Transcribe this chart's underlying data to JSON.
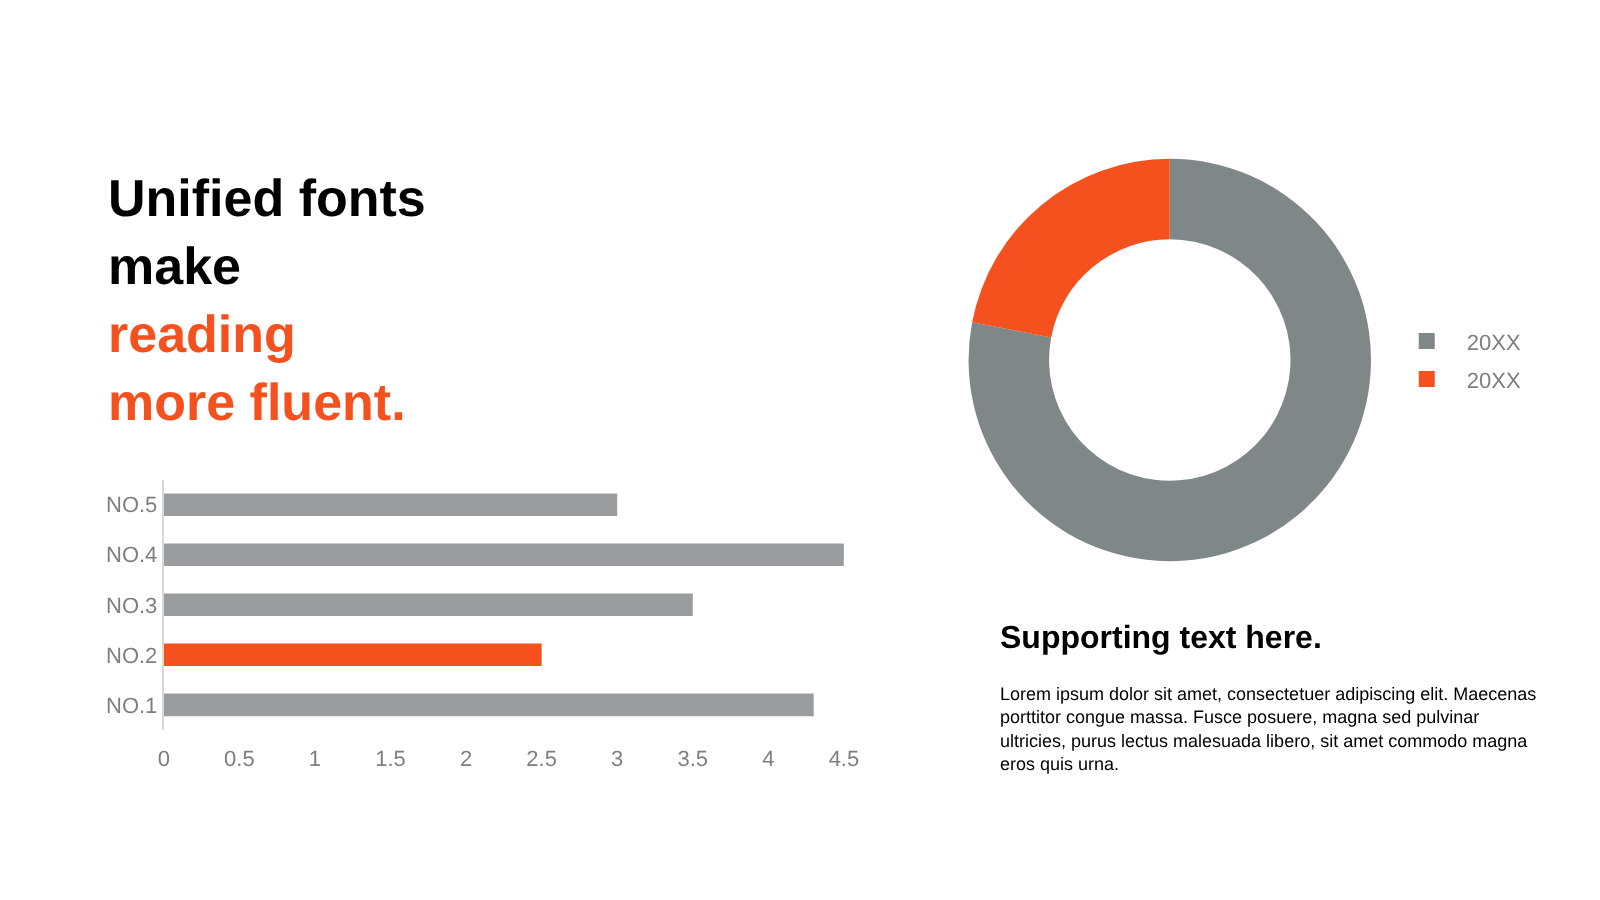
{
  "chart_data": [
    {
      "type": "bar",
      "title": "Unified fonts\nmake",
      "subtitle": "reading\nmore fluent.",
      "orientation": "horizontal",
      "categories": [
        "NO.5",
        "NO.4",
        "NO.3",
        "NO.2",
        "NO.1"
      ],
      "values": [
        3,
        4.5,
        3.5,
        2.5,
        4.3
      ],
      "colors": [
        "#9a9c9d",
        "#9a9c9d",
        "#9a9c9d",
        "#f4511e",
        "#9a9c9d"
      ],
      "xlim": [
        0,
        4.5
      ],
      "xticks": [
        0,
        0.5,
        1,
        1.5,
        2,
        2.5,
        3,
        3.5,
        4,
        4.5
      ],
      "legend": false
    },
    {
      "type": "donut",
      "categories": [
        "20XX",
        "20XX"
      ],
      "values": [
        78,
        22
      ],
      "colors": [
        "#7f8788",
        "#f4511e"
      ],
      "legend": "right"
    },
    {
      "type": "other",
      "title": "Supporting text here.",
      "annotations": [
        "Lorem ipsum dolor sit amet, consectetuer adipiscing elit. Maecenas porttitor congue massa. Fusce posuere, magna sed pulvinar ultricies, purus lectus malesuada libero, sit amet commodo magna eros quis urna."
      ]
    }
  ]
}
